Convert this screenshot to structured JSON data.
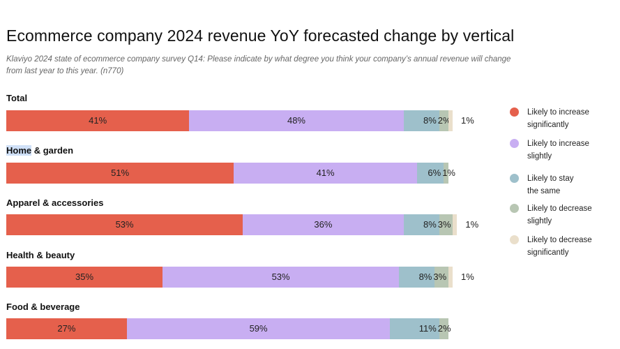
{
  "title": "Ecommerce company 2024 revenue YoY forecasted change by vertical",
  "subtitle": "Klaviyo 2024 state of ecommerce company survey Q14: Please indicate by what degree you think your company’s annual revenue will change from last year to this year. (n770)",
  "chart_data": {
    "type": "bar",
    "orientation": "horizontal",
    "stacked": true,
    "xlim": [
      0,
      100
    ],
    "legend_position": "right",
    "categories": [
      "Total",
      "Home & garden",
      "Apparel & accessories",
      "Health & beauty",
      "Food & beverage"
    ],
    "series": [
      {
        "name": "Likely to increase significantly",
        "color": "#e5604c",
        "values": [
          41,
          51,
          53,
          35,
          27
        ],
        "labels": [
          "41%",
          "51%",
          "53%",
          "35%",
          "27%"
        ]
      },
      {
        "name": "Likely to increase slightly",
        "color": "#c8aef2",
        "values": [
          48,
          41,
          36,
          53,
          59
        ],
        "labels": [
          "48%",
          "41%",
          "36%",
          "53%",
          "59%"
        ]
      },
      {
        "name": "Likely to stay the same",
        "color": "#9ec0cb",
        "values": [
          8,
          6,
          8,
          8,
          11
        ],
        "labels": [
          "8%",
          "6%",
          "8%",
          "8%",
          "11%"
        ]
      },
      {
        "name": "Likely to decrease slightly",
        "color": "#b8c6b3",
        "values": [
          2,
          1,
          3,
          3,
          2
        ],
        "labels": [
          "2%",
          "1%",
          "3%",
          "3%",
          "2%"
        ]
      },
      {
        "name": "Likely to decrease significantly",
        "color": "#eadfcb",
        "values": [
          1,
          0,
          1,
          1,
          0
        ],
        "labels": [
          "1%",
          "",
          "1%",
          "1%",
          ""
        ]
      }
    ]
  },
  "legend": [
    {
      "line1": "Likely to increase",
      "line2": "significantly",
      "color": "#e5604c"
    },
    {
      "line1": "Likely to increase",
      "line2": "slightly",
      "color": "#c8aef2"
    },
    {
      "line1": "Likely to stay",
      "line2": "the same",
      "color": "#9ec0cb"
    },
    {
      "line1": "Likely to decrease",
      "line2": "slightly",
      "color": "#b8c6b3"
    },
    {
      "line1": "Likely to decrease",
      "line2": "significantly",
      "color": "#eadfcb"
    }
  ]
}
